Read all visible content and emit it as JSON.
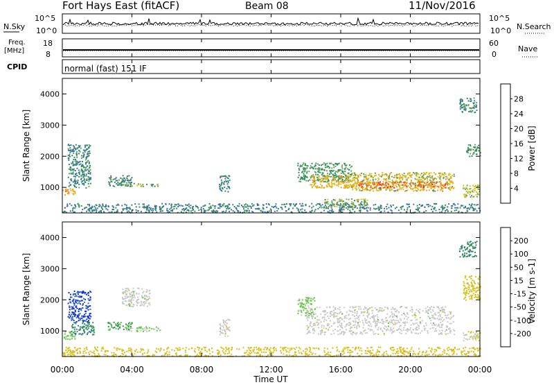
{
  "header": {
    "site": "Fort Hays East (fitACF)",
    "beam": "Beam 08",
    "date": "11/Nov/2016"
  },
  "top_panels": {
    "nsky_label": "N.Sky",
    "nsearch_label": "N.Search",
    "nsky_ticks": [
      "10^5",
      "10^0"
    ],
    "nsearch_ticks": [
      "10^5",
      "10^0"
    ],
    "freq_label_1": "Freq.",
    "freq_label_2": "[MHz]",
    "freq_ticks": [
      "18",
      "8"
    ],
    "nave_label": "Nave",
    "nave_ticks": [
      "60",
      "0"
    ],
    "cpid_label": "CPID",
    "cpid_text": "normal (fast) 151 IF"
  },
  "x_axis": {
    "label": "Time UT",
    "ticks": [
      "00:00",
      "04:00",
      "08:00",
      "12:00",
      "16:00",
      "20:00",
      "00:00"
    ],
    "range_hours": [
      0,
      24
    ]
  },
  "chart_data": [
    {
      "type": "heatmap",
      "panel": "power",
      "ylabel": "Slant Range [km]",
      "ylim": [
        180,
        4500
      ],
      "yticks": [
        1000,
        2000,
        3000,
        4000
      ],
      "colorbar_label": "Power [dB]",
      "colorbar_ticks": [
        "28",
        "24",
        "20",
        "16",
        "12",
        "8",
        "4"
      ],
      "scale_range": [
        0,
        32
      ],
      "colors": [
        "#0a2be8",
        "#3a6fa8",
        "#2e8b57",
        "#5fa05f",
        "#d6c21c",
        "#f0a21a",
        "#f26a1c",
        "#e8281a"
      ],
      "regions": [
        {
          "t": [
            0.0,
            0.7
          ],
          "r": [
            750,
            1000
          ],
          "v": 22
        },
        {
          "t": [
            0.3,
            1.6
          ],
          "r": [
            1000,
            2400
          ],
          "v": 9
        },
        {
          "t": [
            2.6,
            4.0
          ],
          "r": [
            1050,
            1400
          ],
          "v": 10
        },
        {
          "t": [
            3.2,
            5.6
          ],
          "r": [
            1050,
            1150
          ],
          "v": 14
        },
        {
          "t": [
            9.0,
            9.6
          ],
          "r": [
            850,
            1400
          ],
          "v": 9
        },
        {
          "t": [
            13.5,
            16.6
          ],
          "r": [
            1200,
            1800
          ],
          "v": 12
        },
        {
          "t": [
            14.2,
            17.0
          ],
          "r": [
            1000,
            1400
          ],
          "v": 20
        },
        {
          "t": [
            16.5,
            22.5
          ],
          "r": [
            900,
            1500
          ],
          "v": 18
        },
        {
          "t": [
            17.0,
            22.0
          ],
          "r": [
            1000,
            1200
          ],
          "v": 26
        },
        {
          "t": [
            15.0,
            17.5
          ],
          "r": [
            350,
            650
          ],
          "v": 14
        },
        {
          "t": [
            23.0,
            24.0
          ],
          "r": [
            700,
            1100
          ],
          "v": 16
        },
        {
          "t": [
            23.2,
            24.0
          ],
          "r": [
            2000,
            2400
          ],
          "v": 12
        },
        {
          "t": [
            22.8,
            23.8
          ],
          "r": [
            3400,
            3900
          ],
          "v": 10
        },
        {
          "t": [
            0.0,
            24.0
          ],
          "r": [
            200,
            500
          ],
          "v": 8
        }
      ]
    },
    {
      "type": "heatmap",
      "panel": "velocity",
      "ylabel": "Slant Range [km]",
      "ylim": [
        180,
        4500
      ],
      "yticks": [
        1000,
        2000,
        3000,
        4000
      ],
      "colorbar_label": "Velocity [m s-1]",
      "colorbar_ticks": [
        "200",
        "100",
        "50",
        "15",
        "-15",
        "-50",
        "-100",
        "-200"
      ],
      "scale_range": [
        -250,
        250
      ],
      "colors": [
        "#e8281a",
        "#f26a1c",
        "#f0a21a",
        "#d6c21c",
        "#c8c8c8",
        "#5fc840",
        "#2e8b57",
        "#3a6fa8",
        "#0a2be8"
      ],
      "regions": [
        {
          "t": [
            0.0,
            0.7
          ],
          "r": [
            750,
            1000
          ],
          "v": 40
        },
        {
          "t": [
            0.3,
            1.6
          ],
          "r": [
            1300,
            2300
          ],
          "v": 200
        },
        {
          "t": [
            0.5,
            1.8
          ],
          "r": [
            900,
            1300
          ],
          "v": 120
        },
        {
          "t": [
            2.6,
            4.0
          ],
          "r": [
            1050,
            1300
          ],
          "v": 90
        },
        {
          "t": [
            3.6,
            5.6
          ],
          "r": [
            1000,
            1150
          ],
          "v": 40
        },
        {
          "t": [
            3.4,
            5.0
          ],
          "r": [
            1800,
            2400
          ],
          "v": 0
        },
        {
          "t": [
            9.0,
            9.6
          ],
          "r": [
            850,
            1400
          ],
          "v": 0
        },
        {
          "t": [
            13.5,
            14.5
          ],
          "r": [
            1500,
            2100
          ],
          "v": 40
        },
        {
          "t": [
            14.0,
            22.5
          ],
          "r": [
            900,
            1800
          ],
          "v": 0
        },
        {
          "t": [
            23.0,
            24.0
          ],
          "r": [
            700,
            1000
          ],
          "v": -20
        },
        {
          "t": [
            23.0,
            24.0
          ],
          "r": [
            2000,
            2800
          ],
          "v": -60
        },
        {
          "t": [
            22.8,
            23.8
          ],
          "r": [
            3400,
            3900
          ],
          "v": 120
        },
        {
          "t": [
            0.0,
            24.0
          ],
          "r": [
            200,
            500
          ],
          "v": -60
        }
      ]
    }
  ]
}
